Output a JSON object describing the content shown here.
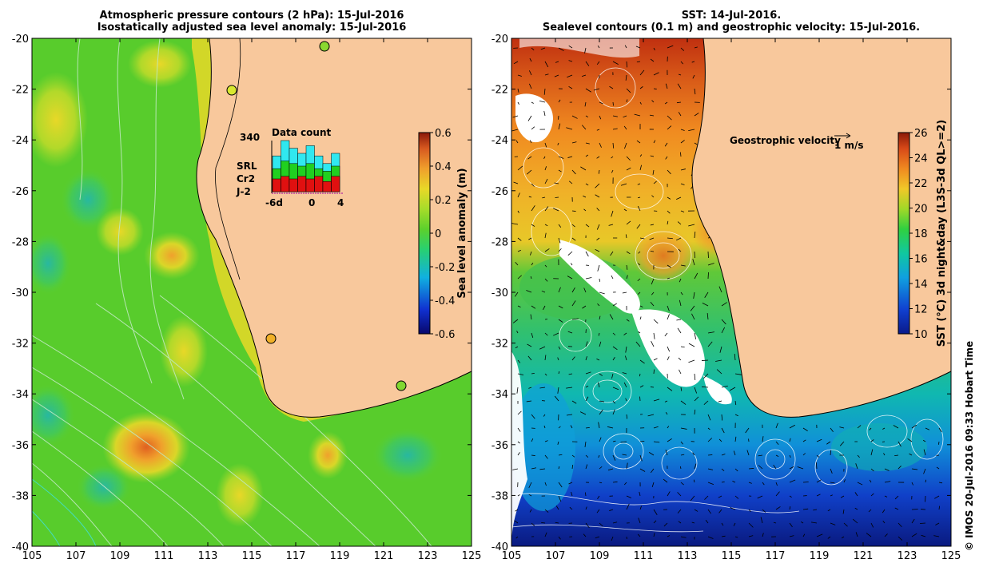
{
  "left_panel": {
    "title_line1": "Atmospheric pressure contours (2 hPa): 15-Jul-2016",
    "title_line2": "Isostatically adjusted sea level anomaly: 15-Jul-2016",
    "colorbar": {
      "label": "Sea level anomaly (m)",
      "ticks": [
        "0.6",
        "0.4",
        "0.2",
        "0",
        "-0.2",
        "-0.4",
        "-0.6"
      ],
      "colors": [
        "#08086b",
        "#1030d0",
        "#10b0e0",
        "#28d070",
        "#5cd02c",
        "#a6dc2a",
        "#e8d828",
        "#f0a02c",
        "#d85a20",
        "#8a1808"
      ]
    },
    "data_count": {
      "title": "Data count",
      "max_label": "340",
      "x_labels": [
        "-6d",
        "0",
        "4"
      ],
      "legend": [
        {
          "name": "SRL",
          "color": "#30e8f0"
        },
        {
          "name": "Cr2",
          "color": "#20d020"
        },
        {
          "name": "J-2",
          "color": "#e01010"
        }
      ],
      "bars": [
        {
          "j2": 0.25,
          "cr2": 0.45,
          "srl": 0.7
        },
        {
          "j2": 0.3,
          "cr2": 0.6,
          "srl": 1.0
        },
        {
          "j2": 0.25,
          "cr2": 0.55,
          "srl": 0.85
        },
        {
          "j2": 0.3,
          "cr2": 0.5,
          "srl": 0.75
        },
        {
          "j2": 0.25,
          "cr2": 0.55,
          "srl": 0.9
        },
        {
          "j2": 0.3,
          "cr2": 0.45,
          "srl": 0.7
        },
        {
          "j2": 0.2,
          "cr2": 0.4,
          "srl": 0.55
        },
        {
          "j2": 0.3,
          "cr2": 0.5,
          "srl": 0.75
        }
      ]
    }
  },
  "right_panel": {
    "title_line1": "SST: 14-Jul-2016.",
    "title_line2": "Sealevel contours (0.1 m) and geostrophic velocity: 15-Jul-2016.",
    "velocity_legend": "Geostrophic velocity",
    "velocity_scale": "1 m/s",
    "colorbar": {
      "label": "SST (°C) 3d night&day (L3S-3d QL>=2)",
      "ticks": [
        "26",
        "24",
        "22",
        "20",
        "18",
        "16",
        "14",
        "12",
        "10"
      ],
      "colors": [
        "#0a1a8a",
        "#1040d0",
        "#10a0e0",
        "#10c8a0",
        "#30d040",
        "#a0d828",
        "#f0c828",
        "#f08a20",
        "#d84a18",
        "#8a1a08"
      ]
    }
  },
  "axes": {
    "lon_ticks": [
      "105",
      "107",
      "109",
      "111",
      "113",
      "115",
      "117",
      "119",
      "121",
      "123",
      "125"
    ],
    "lat_ticks": [
      "-20",
      "-22",
      "-24",
      "-26",
      "-28",
      "-30",
      "-32",
      "-34",
      "-36",
      "-38",
      "-40"
    ]
  },
  "credit": "© IMOS 20-Jul-2016 09:33 Hobart Time",
  "colors": {
    "land": "#f8c89c",
    "coast": "#000000"
  }
}
